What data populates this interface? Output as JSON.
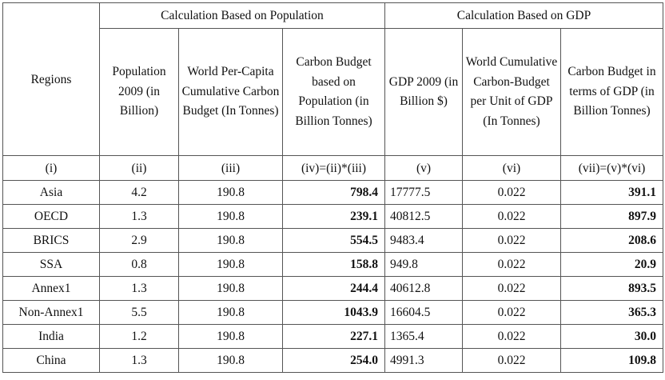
{
  "table": {
    "corner": "Regions",
    "groups": {
      "population": "Calculation Based on Population",
      "gdp": "Calculation Based on GDP"
    },
    "columns": [
      "Population 2009 (in Billion)",
      "World Per-Capita Cumulative Carbon Budget (In Tonnes)",
      "Carbon Budget based on Population (in Billion Tonnes)",
      "GDP 2009 (in Billion $)",
      "World Cumulative Carbon-Budget per Unit of GDP (In Tonnes)",
      "Carbon Budget in terms of GDP (in Billion Tonnes)"
    ],
    "index_row": [
      "(i)",
      "(ii)",
      "(iii)",
      "(iv)=(ii)*(iii)",
      "(v)",
      "(vi)",
      "(vii)=(v)*(vi)"
    ],
    "rows": [
      [
        "Asia",
        "4.2",
        "190.8",
        "798.4",
        "17777.5",
        "0.022",
        "391.1"
      ],
      [
        "OECD",
        "1.3",
        "190.8",
        "239.1",
        "40812.5",
        "0.022",
        "897.9"
      ],
      [
        "BRICS",
        "2.9",
        "190.8",
        "554.5",
        "9483.4",
        "0.022",
        "208.6"
      ],
      [
        "SSA",
        "0.8",
        "190.8",
        "158.8",
        "949.8",
        "0.022",
        "20.9"
      ],
      [
        "Annex1",
        "1.3",
        "190.8",
        "244.4",
        "40612.8",
        "0.022",
        "893.5"
      ],
      [
        "Non-Annex1",
        "5.5",
        "190.8",
        "1043.9",
        "16604.5",
        "0.022",
        "365.3"
      ],
      [
        "India",
        "1.2",
        "190.8",
        "227.1",
        "1365.4",
        "0.022",
        "30.0"
      ],
      [
        "China",
        "1.3",
        "190.8",
        "254.0",
        "4991.3",
        "0.022",
        "109.8"
      ]
    ]
  }
}
